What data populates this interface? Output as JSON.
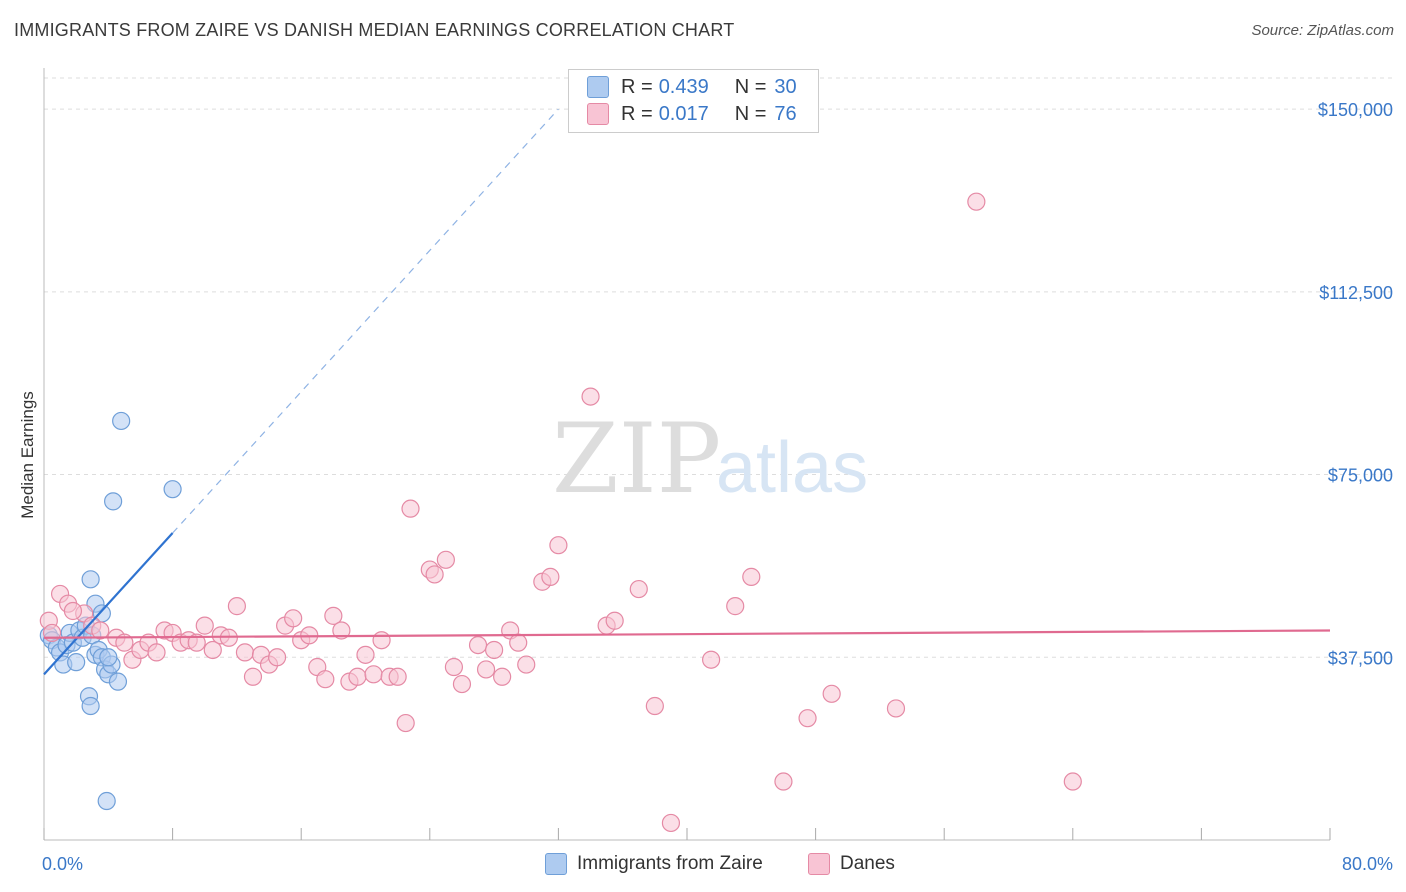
{
  "title": "IMMIGRANTS FROM ZAIRE VS DANISH MEDIAN EARNINGS CORRELATION CHART",
  "source": "Source: ZipAtlas.com",
  "watermark": {
    "zip": "ZIP",
    "atlas": "atlas"
  },
  "legend": {
    "rows": [
      {
        "r_label": "R =",
        "r_value": "0.439",
        "n_label": "N =",
        "n_value": "30",
        "color": "#aecbf0",
        "border": "#6f9fd8"
      },
      {
        "r_label": "R =",
        "r_value": "0.017",
        "n_label": "N =",
        "n_value": "76",
        "color": "#f8c4d4",
        "border": "#e58aa5"
      }
    ]
  },
  "bottom_legend": [
    {
      "label": "Immigrants from Zaire",
      "color": "#aecbf0",
      "border": "#6f9fd8"
    },
    {
      "label": "Danes",
      "color": "#f8c4d4",
      "border": "#e58aa5"
    }
  ],
  "chart_data": {
    "type": "scatter",
    "title": "IMMIGRANTS FROM ZAIRE VS DANISH MEDIAN EARNINGS CORRELATION CHART",
    "xlabel": "",
    "ylabel": "Median Earnings",
    "xlim": [
      0,
      80
    ],
    "ylim": [
      0,
      157000
    ],
    "x_tick_labels": [
      "0.0%",
      "80.0%"
    ],
    "y_ticks": [
      37500,
      75000,
      112500,
      150000
    ],
    "y_tick_labels": [
      "$37,500",
      "$75,000",
      "$112,500",
      "$150,000"
    ],
    "grid": true,
    "series": [
      {
        "name": "Immigrants from Zaire",
        "color": "#6f9fd8",
        "fill": "#aecbf0",
        "points": [
          [
            0.3,
            42000
          ],
          [
            0.5,
            41000
          ],
          [
            0.8,
            39500
          ],
          [
            1.0,
            38500
          ],
          [
            1.2,
            36000
          ],
          [
            1.4,
            40000
          ],
          [
            1.6,
            42500
          ],
          [
            1.8,
            40500
          ],
          [
            2.0,
            36500
          ],
          [
            2.2,
            43000
          ],
          [
            2.4,
            41500
          ],
          [
            2.6,
            44000
          ],
          [
            2.8,
            29500
          ],
          [
            2.9,
            27500
          ],
          [
            3.0,
            42000
          ],
          [
            3.2,
            38000
          ],
          [
            3.4,
            39000
          ],
          [
            3.6,
            37500
          ],
          [
            3.8,
            35000
          ],
          [
            4.0,
            34000
          ],
          [
            4.2,
            36000
          ],
          [
            2.9,
            53500
          ],
          [
            3.2,
            48500
          ],
          [
            3.6,
            46500
          ],
          [
            4.6,
            32500
          ],
          [
            4.3,
            69500
          ],
          [
            4.8,
            86000
          ],
          [
            8.0,
            72000
          ],
          [
            3.9,
            8000
          ],
          [
            4.0,
            37500
          ]
        ],
        "trend": {
          "x": [
            0,
            8
          ],
          "y": [
            34000,
            63000
          ],
          "dashed_extension_to_x": 32
        }
      },
      {
        "name": "Danes",
        "color": "#e58aa5",
        "fill": "#f8c4d4",
        "points": [
          [
            0.3,
            45000
          ],
          [
            1.0,
            50500
          ],
          [
            1.5,
            48500
          ],
          [
            2.5,
            46500
          ],
          [
            3.0,
            44000
          ],
          [
            3.5,
            43000
          ],
          [
            4.5,
            41500
          ],
          [
            5.0,
            40500
          ],
          [
            5.5,
            37000
          ],
          [
            6.0,
            39000
          ],
          [
            6.5,
            40500
          ],
          [
            7.0,
            38500
          ],
          [
            7.5,
            43000
          ],
          [
            8.0,
            42500
          ],
          [
            8.5,
            40500
          ],
          [
            9.0,
            41000
          ],
          [
            9.5,
            40500
          ],
          [
            10.0,
            44000
          ],
          [
            10.5,
            39000
          ],
          [
            11.0,
            42000
          ],
          [
            11.5,
            41500
          ],
          [
            12.0,
            48000
          ],
          [
            12.5,
            38500
          ],
          [
            13.0,
            33500
          ],
          [
            13.5,
            38000
          ],
          [
            14.0,
            36000
          ],
          [
            14.5,
            37500
          ],
          [
            15.0,
            44000
          ],
          [
            15.5,
            45500
          ],
          [
            16.0,
            41000
          ],
          [
            16.5,
            42000
          ],
          [
            17.0,
            35500
          ],
          [
            17.5,
            33000
          ],
          [
            18.0,
            46000
          ],
          [
            18.5,
            43000
          ],
          [
            19.0,
            32500
          ],
          [
            19.5,
            33500
          ],
          [
            20.0,
            38000
          ],
          [
            20.5,
            34000
          ],
          [
            21.0,
            41000
          ],
          [
            21.5,
            33500
          ],
          [
            22.0,
            33500
          ],
          [
            22.5,
            24000
          ],
          [
            22.8,
            68000
          ],
          [
            24.0,
            55500
          ],
          [
            24.3,
            54500
          ],
          [
            25.0,
            57500
          ],
          [
            25.5,
            35500
          ],
          [
            26.0,
            32000
          ],
          [
            27.0,
            40000
          ],
          [
            27.5,
            35000
          ],
          [
            28.0,
            39000
          ],
          [
            28.5,
            33500
          ],
          [
            29.0,
            43000
          ],
          [
            29.5,
            40500
          ],
          [
            30.0,
            36000
          ],
          [
            31.0,
            53000
          ],
          [
            31.5,
            54000
          ],
          [
            32.0,
            60500
          ],
          [
            34.0,
            91000
          ],
          [
            35.0,
            44000
          ],
          [
            35.5,
            45000
          ],
          [
            37.0,
            51500
          ],
          [
            38.0,
            27500
          ],
          [
            39.0,
            3500
          ],
          [
            41.5,
            37000
          ],
          [
            43.0,
            48000
          ],
          [
            44.0,
            54000
          ],
          [
            46.0,
            12000
          ],
          [
            47.5,
            25000
          ],
          [
            49.0,
            30000
          ],
          [
            53.0,
            27000
          ],
          [
            58.0,
            131000
          ],
          [
            64.0,
            12000
          ],
          [
            0.5,
            42500
          ],
          [
            1.8,
            47000
          ]
        ],
        "trend": {
          "x": [
            0,
            80
          ],
          "y": [
            41500,
            43000
          ]
        }
      }
    ]
  }
}
